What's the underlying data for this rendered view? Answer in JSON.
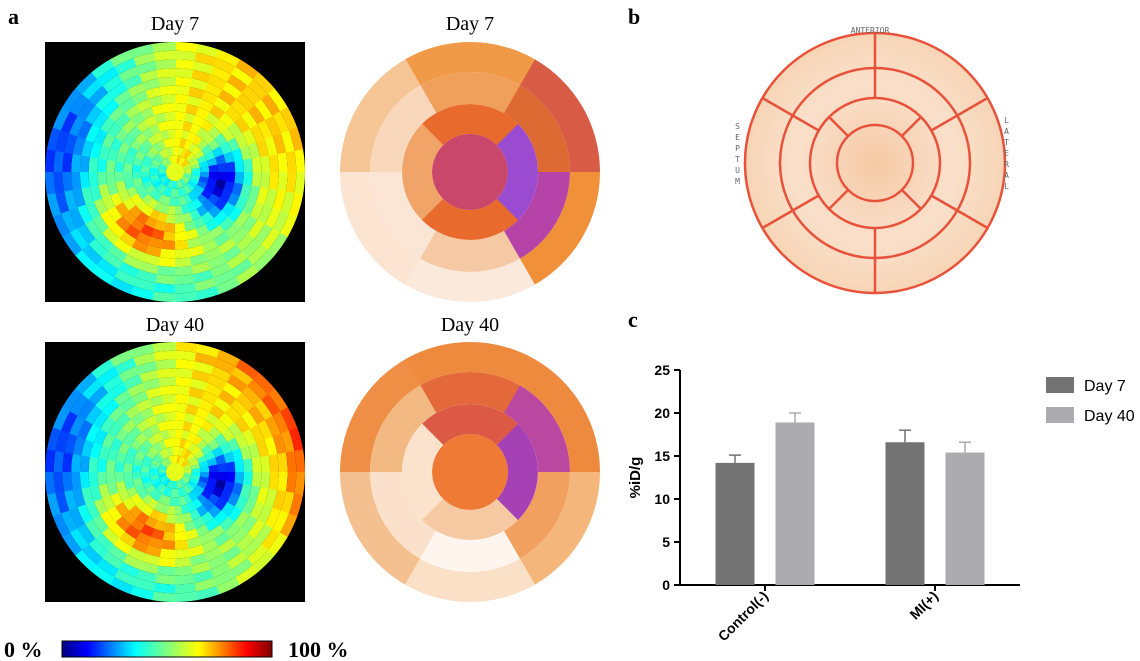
{
  "panel_labels": [
    "a",
    "b",
    "c"
  ],
  "panel_a": {
    "titles": [
      "Day 7",
      "Day 7",
      "Day 40",
      "Day 40"
    ],
    "colorbar": {
      "min_label": "0 %",
      "max_label": "100 %"
    }
  },
  "panel_b": {
    "anterior": "ANTERIOR",
    "septum": "SEPTUM",
    "lateral": "LATERAL"
  },
  "chart_data": {
    "type": "bar",
    "y_label": "%iD/g",
    "categories": [
      "Control(-)",
      "MI(+)"
    ],
    "series": [
      {
        "name": "Day 7",
        "color": "#737373",
        "values": [
          14.2,
          16.6
        ],
        "errors": [
          0.9,
          1.4
        ]
      },
      {
        "name": "Day 40",
        "color": "#ababb0",
        "values": [
          18.9,
          15.4
        ],
        "errors": [
          1.1,
          1.2
        ]
      }
    ],
    "ylim": [
      0,
      25
    ],
    "yticks": [
      0,
      5,
      10,
      15,
      20,
      25
    ],
    "legend": "right"
  }
}
